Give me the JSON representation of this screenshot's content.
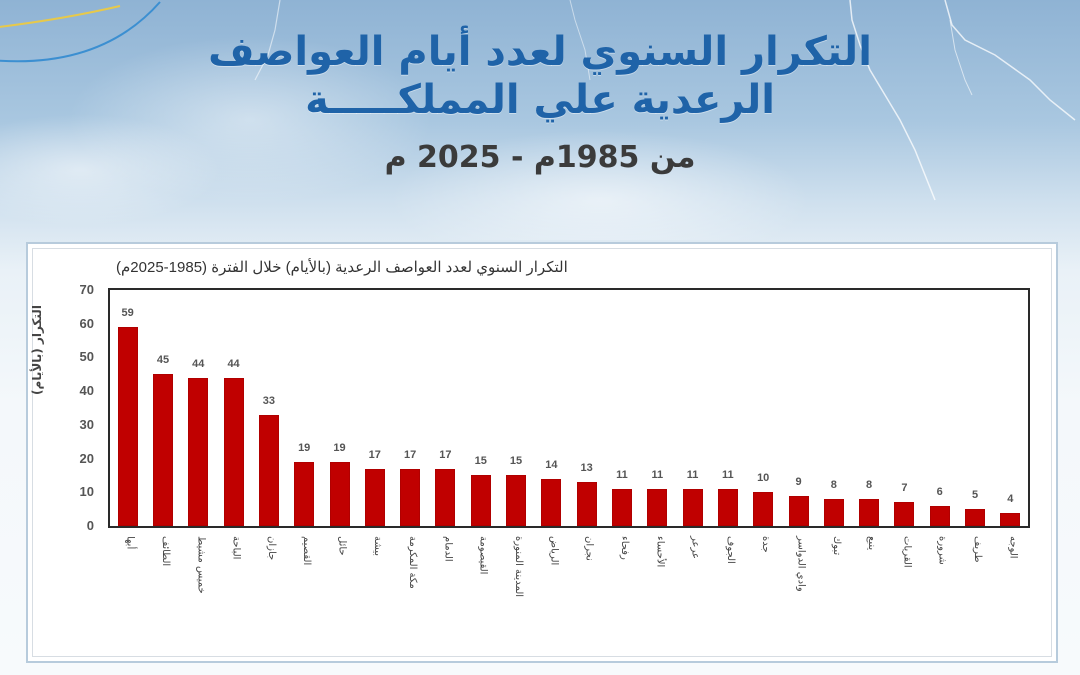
{
  "header": {
    "title_line1": "التكرار السنوي لعدد أيام العواصف",
    "title_line2": "الرعدية علي المملكـــــة",
    "subtitle": "من 1985م - 2025 م"
  },
  "colors": {
    "title_blue": "#1f63a8",
    "bar_red": "#c00000",
    "frame_border": "#b7cbdc"
  },
  "chart_data": {
    "type": "bar",
    "title": "التكرار السنوي لعدد العواصف الرعدية (بالأيام) خلال الفترة (1985-2025م)",
    "xlabel": "",
    "ylabel": "التكرار (بالأيام)",
    "ylim": [
      0,
      70
    ],
    "yticks": [
      0,
      10,
      20,
      30,
      40,
      50,
      60,
      70
    ],
    "grid": false,
    "legend": null,
    "categories": [
      "أبها",
      "الطائف",
      "خميس مشيط",
      "الباحة",
      "جازان",
      "القصيم",
      "حائل",
      "بيشة",
      "مكة المكرمة",
      "الدمام",
      "القيصومة",
      "المدينة المنورة",
      "الرياض",
      "نجران",
      "رفحاء",
      "الأحساء",
      "عرعر",
      "الجوف",
      "جدة",
      "وادي الدواسر",
      "تبوك",
      "ينبع",
      "القريات",
      "شرورة",
      "طريف",
      "الوجه"
    ],
    "values": [
      59,
      45,
      44,
      44,
      33,
      19,
      19,
      17,
      17,
      17,
      15,
      15,
      14,
      13,
      11,
      11,
      11,
      11,
      10,
      9,
      8,
      8,
      7,
      6,
      5,
      4
    ]
  }
}
